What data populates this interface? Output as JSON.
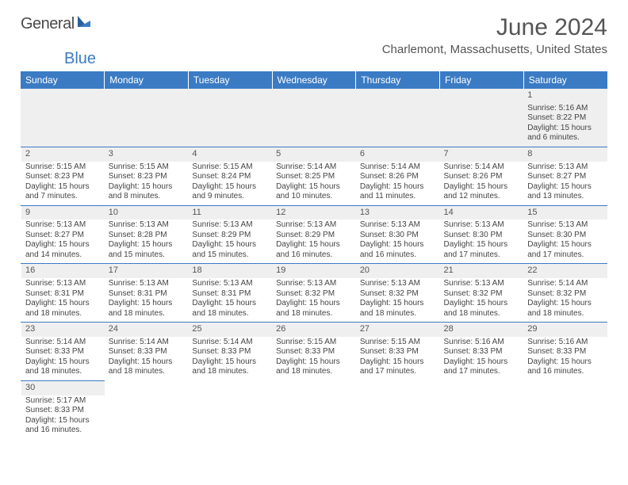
{
  "logo": {
    "text1": "General",
    "text2": "Blue"
  },
  "title": "June 2024",
  "location": "Charlemont, Massachusetts, United States",
  "colors": {
    "header_bg": "#3b7bc4",
    "header_text": "#ffffff",
    "border": "#3b7bc4",
    "daynum_bg": "#efefef",
    "text": "#444444"
  },
  "day_headers": [
    "Sunday",
    "Monday",
    "Tuesday",
    "Wednesday",
    "Thursday",
    "Friday",
    "Saturday"
  ],
  "weeks": [
    [
      null,
      null,
      null,
      null,
      null,
      null,
      {
        "n": "1",
        "sr": "5:16 AM",
        "ss": "8:22 PM",
        "dl": "15 hours and 6 minutes."
      }
    ],
    [
      {
        "n": "2",
        "sr": "5:15 AM",
        "ss": "8:23 PM",
        "dl": "15 hours and 7 minutes."
      },
      {
        "n": "3",
        "sr": "5:15 AM",
        "ss": "8:23 PM",
        "dl": "15 hours and 8 minutes."
      },
      {
        "n": "4",
        "sr": "5:15 AM",
        "ss": "8:24 PM",
        "dl": "15 hours and 9 minutes."
      },
      {
        "n": "5",
        "sr": "5:14 AM",
        "ss": "8:25 PM",
        "dl": "15 hours and 10 minutes."
      },
      {
        "n": "6",
        "sr": "5:14 AM",
        "ss": "8:26 PM",
        "dl": "15 hours and 11 minutes."
      },
      {
        "n": "7",
        "sr": "5:14 AM",
        "ss": "8:26 PM",
        "dl": "15 hours and 12 minutes."
      },
      {
        "n": "8",
        "sr": "5:13 AM",
        "ss": "8:27 PM",
        "dl": "15 hours and 13 minutes."
      }
    ],
    [
      {
        "n": "9",
        "sr": "5:13 AM",
        "ss": "8:27 PM",
        "dl": "15 hours and 14 minutes."
      },
      {
        "n": "10",
        "sr": "5:13 AM",
        "ss": "8:28 PM",
        "dl": "15 hours and 15 minutes."
      },
      {
        "n": "11",
        "sr": "5:13 AM",
        "ss": "8:29 PM",
        "dl": "15 hours and 15 minutes."
      },
      {
        "n": "12",
        "sr": "5:13 AM",
        "ss": "8:29 PM",
        "dl": "15 hours and 16 minutes."
      },
      {
        "n": "13",
        "sr": "5:13 AM",
        "ss": "8:30 PM",
        "dl": "15 hours and 16 minutes."
      },
      {
        "n": "14",
        "sr": "5:13 AM",
        "ss": "8:30 PM",
        "dl": "15 hours and 17 minutes."
      },
      {
        "n": "15",
        "sr": "5:13 AM",
        "ss": "8:30 PM",
        "dl": "15 hours and 17 minutes."
      }
    ],
    [
      {
        "n": "16",
        "sr": "5:13 AM",
        "ss": "8:31 PM",
        "dl": "15 hours and 18 minutes."
      },
      {
        "n": "17",
        "sr": "5:13 AM",
        "ss": "8:31 PM",
        "dl": "15 hours and 18 minutes."
      },
      {
        "n": "18",
        "sr": "5:13 AM",
        "ss": "8:31 PM",
        "dl": "15 hours and 18 minutes."
      },
      {
        "n": "19",
        "sr": "5:13 AM",
        "ss": "8:32 PM",
        "dl": "15 hours and 18 minutes."
      },
      {
        "n": "20",
        "sr": "5:13 AM",
        "ss": "8:32 PM",
        "dl": "15 hours and 18 minutes."
      },
      {
        "n": "21",
        "sr": "5:13 AM",
        "ss": "8:32 PM",
        "dl": "15 hours and 18 minutes."
      },
      {
        "n": "22",
        "sr": "5:14 AM",
        "ss": "8:32 PM",
        "dl": "15 hours and 18 minutes."
      }
    ],
    [
      {
        "n": "23",
        "sr": "5:14 AM",
        "ss": "8:33 PM",
        "dl": "15 hours and 18 minutes."
      },
      {
        "n": "24",
        "sr": "5:14 AM",
        "ss": "8:33 PM",
        "dl": "15 hours and 18 minutes."
      },
      {
        "n": "25",
        "sr": "5:14 AM",
        "ss": "8:33 PM",
        "dl": "15 hours and 18 minutes."
      },
      {
        "n": "26",
        "sr": "5:15 AM",
        "ss": "8:33 PM",
        "dl": "15 hours and 18 minutes."
      },
      {
        "n": "27",
        "sr": "5:15 AM",
        "ss": "8:33 PM",
        "dl": "15 hours and 17 minutes."
      },
      {
        "n": "28",
        "sr": "5:16 AM",
        "ss": "8:33 PM",
        "dl": "15 hours and 17 minutes."
      },
      {
        "n": "29",
        "sr": "5:16 AM",
        "ss": "8:33 PM",
        "dl": "15 hours and 16 minutes."
      }
    ],
    [
      {
        "n": "30",
        "sr": "5:17 AM",
        "ss": "8:33 PM",
        "dl": "15 hours and 16 minutes."
      },
      null,
      null,
      null,
      null,
      null,
      null
    ]
  ],
  "labels": {
    "sunrise": "Sunrise:",
    "sunset": "Sunset:",
    "daylight": "Daylight:"
  }
}
